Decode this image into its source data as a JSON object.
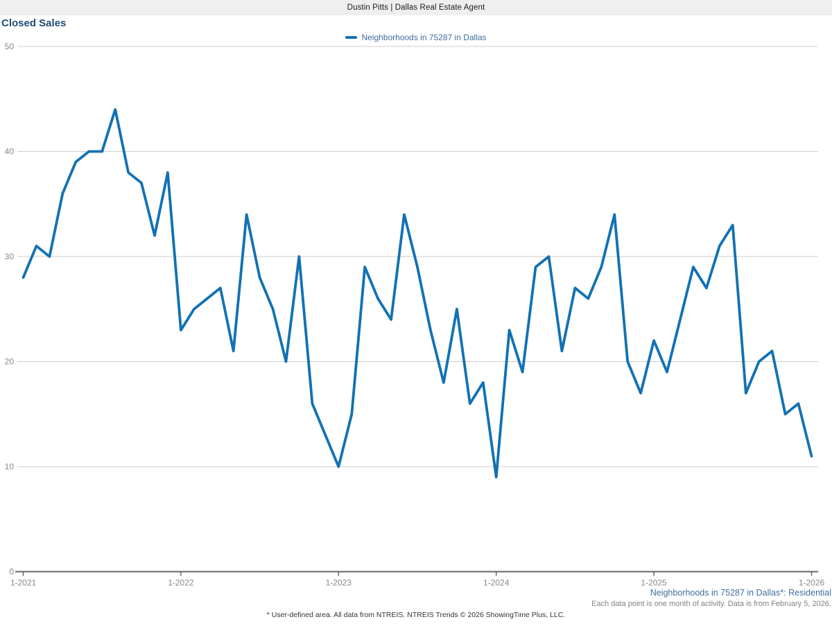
{
  "header": {
    "title": "Dustin Pitts | Dallas Real Estate Agent"
  },
  "chart": {
    "title": "Closed Sales",
    "legend": {
      "label": "Neighborhoods in 75287 in Dallas"
    }
  },
  "footer": {
    "series_note": "Neighborhoods in 75287 in Dallas*: Residential",
    "data_note": "Each data point is one month of activity. Data is from February 5, 2026.",
    "disclaimer": "* User-defined area. All data from NTREIS. NTREIS Trends © 2026 ShowingTime Plus, LLC."
  },
  "colors": {
    "line": "#1271b4",
    "title": "#1f4e79",
    "legend_text": "#3e6e9e",
    "footer_blue": "#3e6e9e",
    "axis_label": "#888888",
    "gridline": "#cccccc",
    "axis_line": "#666666",
    "header_bg": "#efefef"
  },
  "chart_data": {
    "type": "line",
    "title": "Closed Sales",
    "series_name": "Neighborhoods in 75287 in Dallas",
    "x_start": "1-2021",
    "x_interval": "1 month",
    "x_tick_labels": [
      "1-2021",
      "1-2022",
      "1-2023",
      "1-2024",
      "1-2025",
      "1-2026"
    ],
    "x_tick_indices": [
      0,
      12,
      24,
      36,
      48,
      60
    ],
    "y_ticks": [
      0,
      10,
      20,
      30,
      40,
      50
    ],
    "ylim": [
      0,
      50
    ],
    "grid": "horizontal",
    "legend_position": "top-center",
    "values": [
      28,
      31,
      30,
      36,
      39,
      40,
      40,
      44,
      38,
      37,
      32,
      38,
      23,
      25,
      26,
      27,
      21,
      34,
      28,
      25,
      20,
      30,
      16,
      13,
      10,
      15,
      29,
      26,
      24,
      34,
      29,
      23,
      18,
      25,
      16,
      18,
      9,
      23,
      19,
      29,
      30,
      21,
      27,
      26,
      29,
      34,
      20,
      17,
      22,
      19,
      24,
      29,
      27,
      31,
      33,
      17,
      20,
      21,
      15,
      16,
      11
    ]
  }
}
